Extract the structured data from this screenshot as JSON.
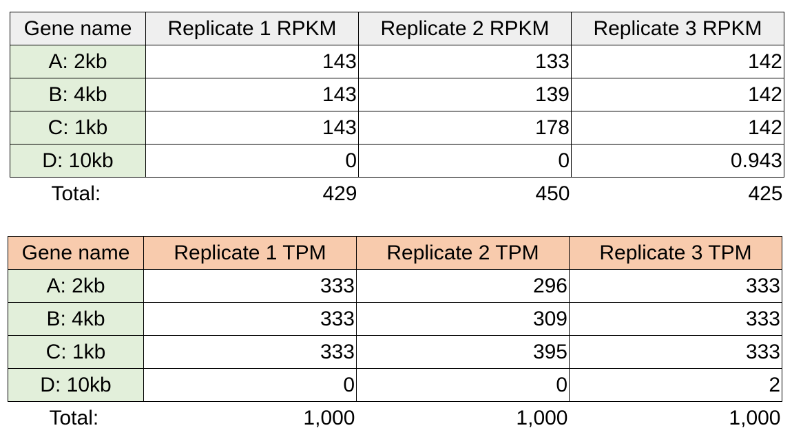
{
  "colors": {
    "rpkm_header_bg": "#efefef",
    "tpm_header_bg": "#f8cbad",
    "gene_name_bg": "#e2efda",
    "cell_bg": "#ffffff",
    "border": "#000000"
  },
  "rpkm_table": {
    "headers": [
      "Gene name",
      "Replicate 1 RPKM",
      "Replicate 2 RPKM",
      "Replicate 3 RPKM"
    ],
    "rows": [
      {
        "gene": "A: 2kb",
        "values": [
          "143",
          "133",
          "142"
        ]
      },
      {
        "gene": "B: 4kb",
        "values": [
          "143",
          "139",
          "142"
        ]
      },
      {
        "gene": "C: 1kb",
        "values": [
          "143",
          "178",
          "142"
        ]
      },
      {
        "gene": "D: 10kb",
        "values": [
          "0",
          "0",
          "0.943"
        ]
      }
    ],
    "total": {
      "label": "Total:",
      "values": [
        "429",
        "450",
        "425"
      ]
    }
  },
  "tpm_table": {
    "headers": [
      "Gene name",
      "Replicate 1 TPM",
      "Replicate 2 TPM",
      "Replicate 3 TPM"
    ],
    "rows": [
      {
        "gene": "A: 2kb",
        "values": [
          "333",
          "296",
          "333"
        ]
      },
      {
        "gene": "B: 4kb",
        "values": [
          "333",
          "309",
          "333"
        ]
      },
      {
        "gene": "C: 1kb",
        "values": [
          "333",
          "395",
          "333"
        ]
      },
      {
        "gene": "D: 10kb",
        "values": [
          "0",
          "0",
          "2"
        ]
      }
    ],
    "total": {
      "label": "Total:",
      "values": [
        "1,000",
        "1,000",
        "1,000"
      ]
    }
  }
}
